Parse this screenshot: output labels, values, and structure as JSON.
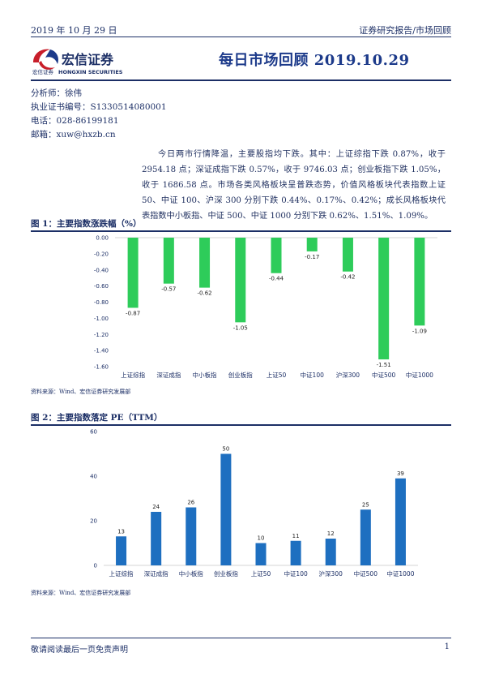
{
  "header": {
    "date": "2019 年 10 月 29 日",
    "category": "证券研究报告/市场回顾",
    "company_cn": "宏信证券",
    "company_en": "HONGXIN SECURITIES",
    "company_small": "宏信证券",
    "title": "每日市场回顾 2019.10.29"
  },
  "analyst": {
    "name": "分析师：徐伟",
    "license": "执业证书编号：S1330514080001",
    "phone": "电话：028-86199181",
    "email": "邮箱：xuw@hxzb.cn"
  },
  "summary": "今日两市行情降温，主要股指均下跌。其中：上证综指下跌 0.87%，收于 2954.18 点；深证成指下跌 0.57%，收于 9746.03 点；创业板指下跌 1.05%，收于 1686.58 点。市场各类风格板块呈普跌态势，价值风格板块代表指数上证 50、中证 100、沪深 300 分别下跌 0.44%、0.17%、0.42%；成长风格板块代表指数中小板指、中证 500、中证 1000 分别下跌 0.62%、1.51%、1.09%。",
  "figure1": {
    "title": "图 1：主要指数涨跌幅（%）",
    "source": "资料来源：Wind、宏信证券研究发展部"
  },
  "figure2": {
    "title": "图 2：主要指数落定 PE（TTM）",
    "source": "资料来源：Wind、宏信证券研究发展部"
  },
  "footer": {
    "disclaimer": "敬请阅读最后一页免责声明",
    "page": "1"
  },
  "colors": {
    "bar_green": "#2ECC5A",
    "bar_blue": "#1E6FC0",
    "navy": "#1C2F66"
  },
  "chart_data": [
    {
      "type": "bar",
      "title": "图 1：主要指数涨跌幅（%）",
      "categories": [
        "上证综指",
        "深证成指",
        "中小板指",
        "创业板指",
        "上证50",
        "中证100",
        "沪深300",
        "中证500",
        "中证1000"
      ],
      "values": [
        -0.87,
        -0.57,
        -0.62,
        -1.05,
        -0.44,
        -0.17,
        -0.42,
        -1.51,
        -1.09
      ],
      "value_labels": [
        "-0.87",
        "-0.57",
        "-0.62",
        "-1.05",
        "-0.44",
        "-0.17",
        "-0.42",
        "-1.51",
        "-1.09"
      ],
      "yticks": [
        "0.00",
        "-0.20",
        "-0.40",
        "-0.60",
        "-0.80",
        "-1.00",
        "-1.20",
        "-1.40",
        "-1.60"
      ],
      "ylim": [
        -1.6,
        0
      ],
      "grid": false,
      "xlabel": "",
      "ylabel": ""
    },
    {
      "type": "bar",
      "title": "图 2：主要指数落定 PE（TTM）",
      "categories": [
        "上证综指",
        "深证成指",
        "中小板指",
        "创业板指",
        "上证50",
        "中证100",
        "沪深300",
        "中证500",
        "中证1000"
      ],
      "values": [
        13,
        24,
        26,
        50,
        10,
        11,
        12,
        25,
        39
      ],
      "value_labels": [
        "13",
        "24",
        "26",
        "50",
        "10",
        "11",
        "12",
        "25",
        "39"
      ],
      "yticks": [
        "0",
        "20",
        "40",
        "60"
      ],
      "ylim": [
        0,
        60
      ],
      "grid": false,
      "xlabel": "",
      "ylabel": ""
    }
  ]
}
